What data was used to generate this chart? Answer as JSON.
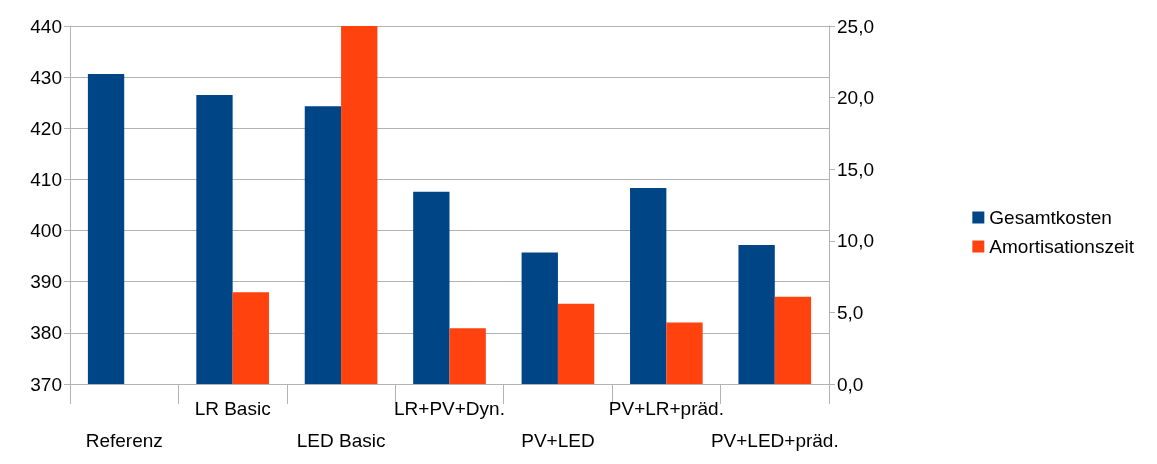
{
  "chart_data": {
    "type": "bar",
    "categories": [
      "Referenz",
      "LR Basic",
      "LED Basic",
      "LR+PV+Dyn.",
      "PV+LED",
      "PV+LR+präd.",
      "PV+LED+präd."
    ],
    "series": [
      {
        "name": "Gesamtkosten",
        "color": "#004586",
        "values": [
          430.6,
          426.5,
          424.3,
          407.6,
          395.7,
          408.3,
          397.2
        ]
      },
      {
        "name": "Amortisationszeit",
        "color": "#ff420e",
        "axis": "y2",
        "values": [
          null,
          6.4,
          25,
          3.9,
          5.6,
          4.3,
          6.1
        ]
      }
    ],
    "ylim": [
      370,
      440
    ],
    "yticks": [
      370,
      380,
      390,
      400,
      410,
      420,
      430,
      440
    ],
    "y2lim": [
      0,
      25
    ],
    "y2ticks": [
      {
        "value": 0,
        "label": "0,0"
      },
      {
        "value": 5,
        "label": "5,0"
      },
      {
        "value": 10,
        "label": "10,0"
      },
      {
        "value": 15,
        "label": "15,0"
      },
      {
        "value": 20,
        "label": "20,0"
      },
      {
        "value": 25,
        "label": "25,0"
      }
    ],
    "grid": "y",
    "legend": "right"
  }
}
